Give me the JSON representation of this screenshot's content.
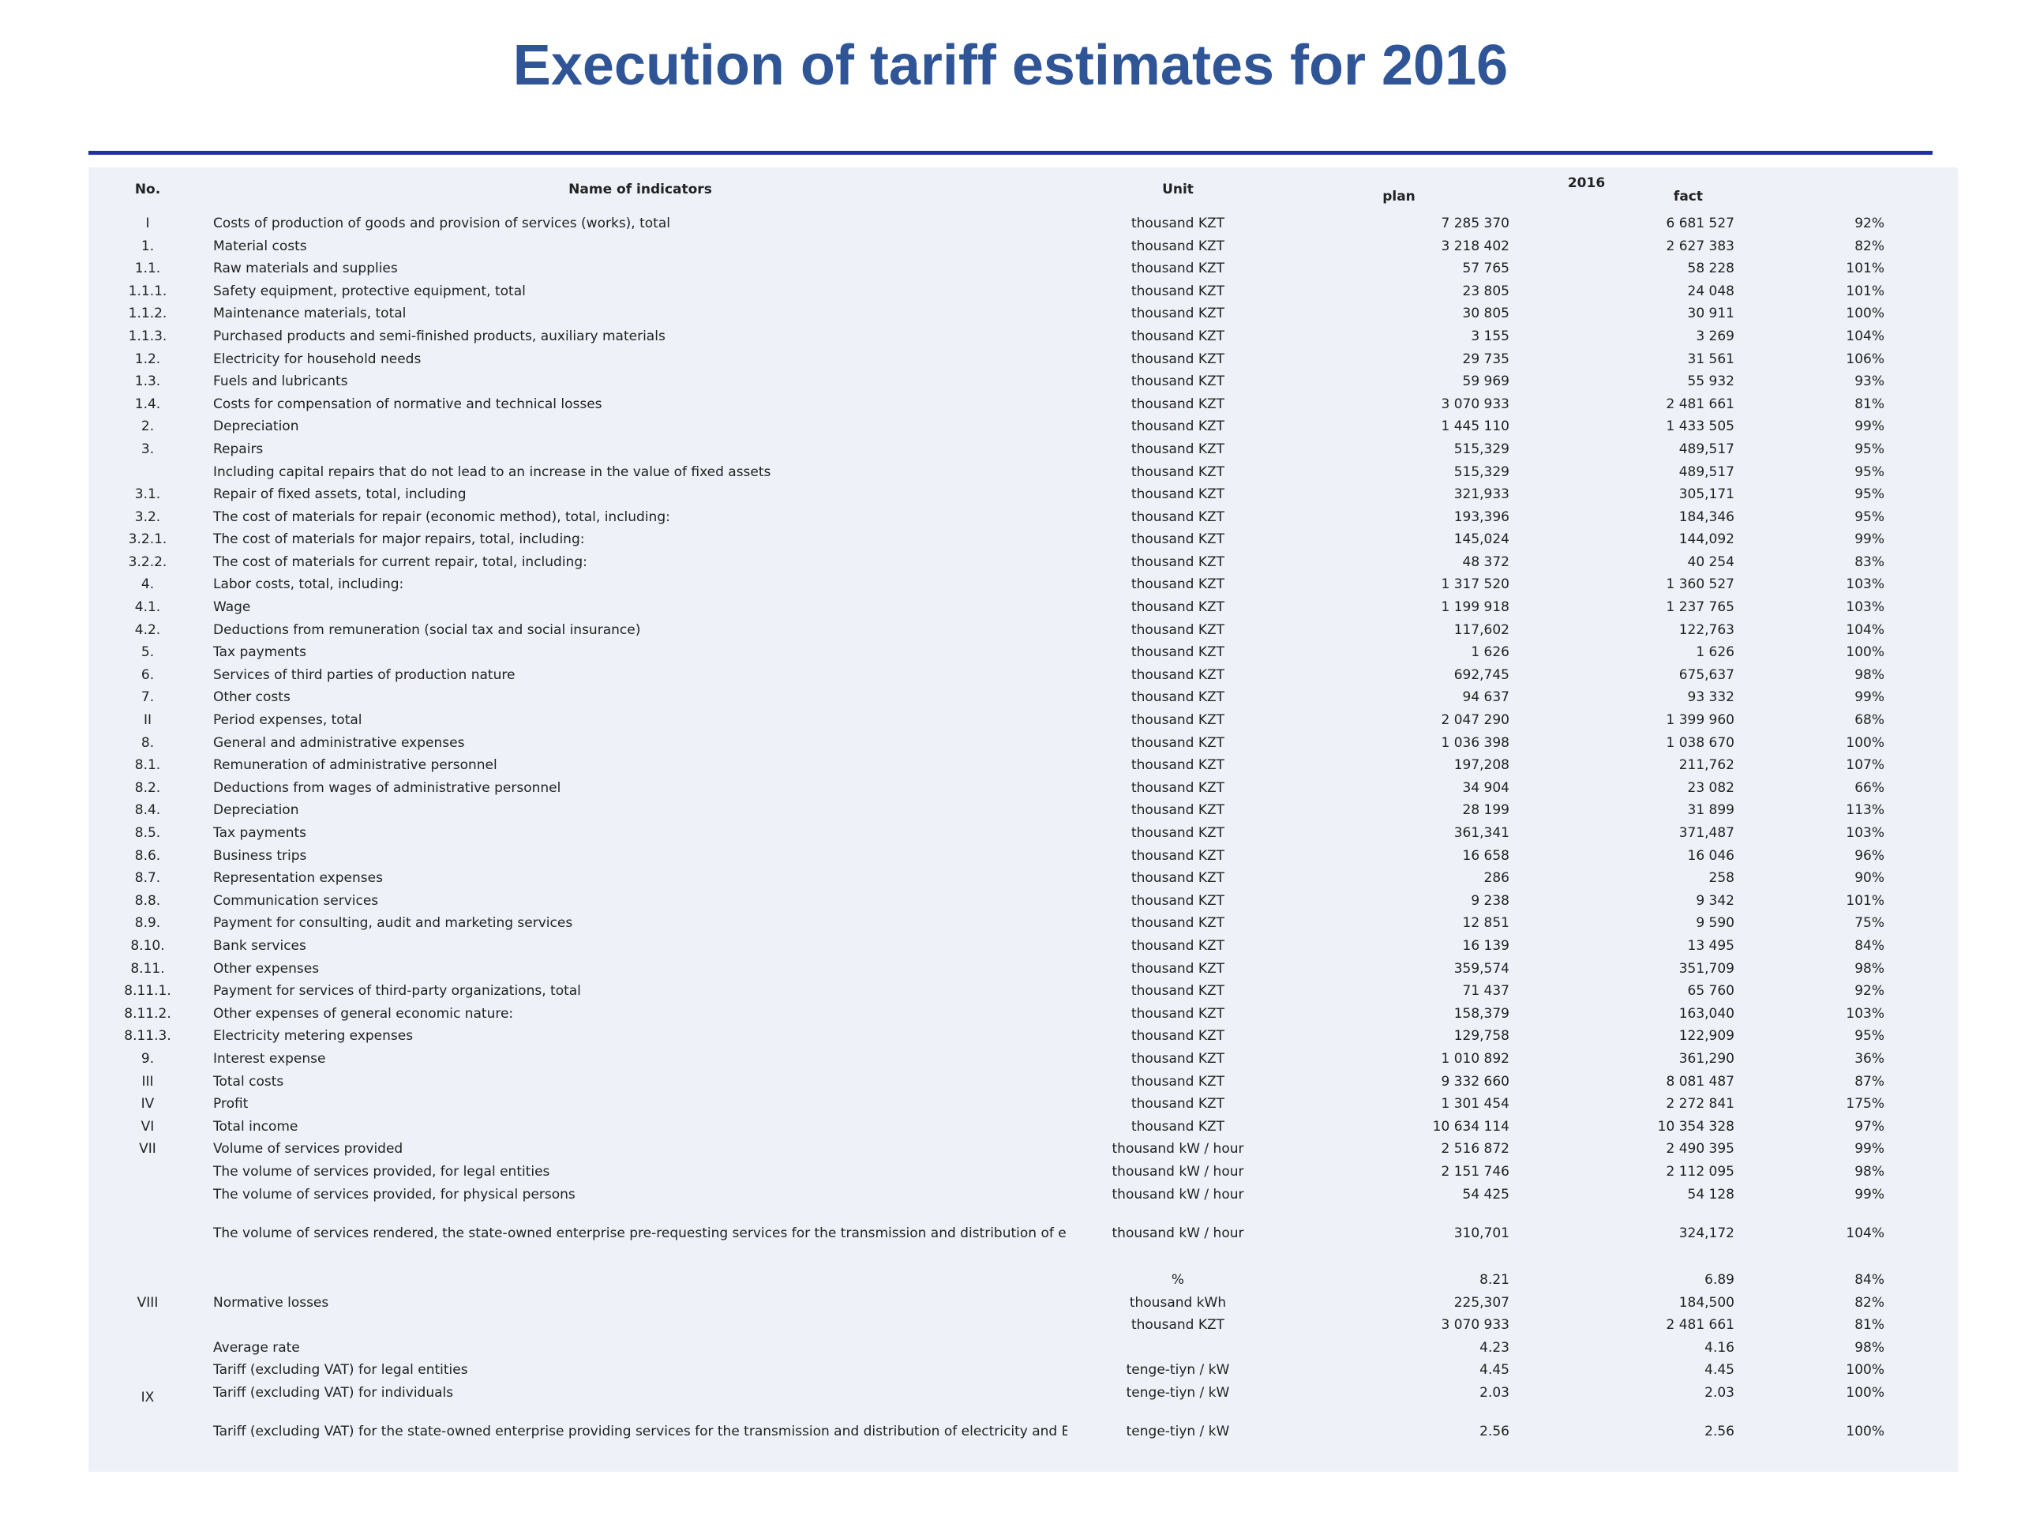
{
  "title": "Execution of tariff estimates for 2016",
  "header": {
    "no": "No.",
    "name": "Name of indicators",
    "unit": "Unit",
    "year": "2016",
    "plan": "plan",
    "fact": "fact"
  },
  "rows": [
    {
      "no": "I",
      "name": "Costs of production of goods and provision of services (works), total",
      "unit": "thousand KZT",
      "plan": "7 285 370",
      "fact": "6 681 527",
      "pct": "92%"
    },
    {
      "no": "1.",
      "name": "Material costs",
      "unit": "thousand KZT",
      "plan": "3 218 402",
      "fact": "2 627 383",
      "pct": "82%"
    },
    {
      "no": "1.1.",
      "name": "Raw materials and supplies",
      "unit": "thousand KZT",
      "plan": "57 765",
      "fact": "58 228",
      "pct": "101%"
    },
    {
      "no": "1.1.1.",
      "name": "Safety equipment, protective equipment, total",
      "unit": "thousand KZT",
      "plan": "23 805",
      "fact": "24 048",
      "pct": "101%"
    },
    {
      "no": "1.1.2.",
      "name": "Maintenance materials, total",
      "unit": "thousand KZT",
      "plan": "30 805",
      "fact": "30 911",
      "pct": "100%"
    },
    {
      "no": "1.1.3.",
      "name": "Purchased products and semi-finished products, auxiliary materials",
      "unit": "thousand KZT",
      "plan": "3 155",
      "fact": "3 269",
      "pct": "104%"
    },
    {
      "no": "1.2.",
      "name": "Electricity for household needs",
      "unit": "thousand KZT",
      "plan": "29 735",
      "fact": "31 561",
      "pct": "106%"
    },
    {
      "no": "1.3.",
      "name": "Fuels and lubricants",
      "unit": "thousand KZT",
      "plan": "59 969",
      "fact": "55 932",
      "pct": "93%"
    },
    {
      "no": "1.4.",
      "name": "Costs for compensation of normative and technical losses",
      "unit": "thousand KZT",
      "plan": "3 070 933",
      "fact": "2 481 661",
      "pct": "81%"
    },
    {
      "no": "2.",
      "name": "Depreciation",
      "unit": "thousand KZT",
      "plan": "1 445 110",
      "fact": "1 433 505",
      "pct": "99%"
    },
    {
      "no": "3.",
      "name": "Repairs",
      "unit": "thousand KZT",
      "plan": "515,329",
      "fact": "489,517",
      "pct": "95%"
    },
    {
      "no": "",
      "name": "Including capital repairs that do not lead to an increase in the value of fixed assets",
      "unit": "thousand KZT",
      "plan": "515,329",
      "fact": "489,517",
      "pct": "95%"
    },
    {
      "no": "3.1.",
      "name": "Repair of fixed assets, total, including",
      "unit": "thousand KZT",
      "plan": "321,933",
      "fact": "305,171",
      "pct": "95%"
    },
    {
      "no": "3.2.",
      "name": "The cost of materials for repair (economic method), total, including:",
      "unit": "thousand KZT",
      "plan": "193,396",
      "fact": "184,346",
      "pct": "95%"
    },
    {
      "no": "3.2.1.",
      "name": "The cost of materials for major repairs, total, including:",
      "unit": "thousand KZT",
      "plan": "145,024",
      "fact": "144,092",
      "pct": "99%"
    },
    {
      "no": "3.2.2.",
      "name": "The cost of materials for current repair, total, including:",
      "unit": "thousand KZT",
      "plan": "48 372",
      "fact": "40 254",
      "pct": "83%"
    },
    {
      "no": "4.",
      "name": "Labor costs, total, including:",
      "unit": "thousand KZT",
      "plan": "1 317 520",
      "fact": "1 360 527",
      "pct": "103%"
    },
    {
      "no": "4.1.",
      "name": "Wage",
      "unit": "thousand KZT",
      "plan": "1 199 918",
      "fact": "1 237 765",
      "pct": "103%"
    },
    {
      "no": "4.2.",
      "name": "Deductions from remuneration (social tax and social insurance)",
      "unit": "thousand KZT",
      "plan": "117,602",
      "fact": "122,763",
      "pct": "104%"
    },
    {
      "no": "5.",
      "name": "Tax payments",
      "unit": "thousand KZT",
      "plan": "1 626",
      "fact": "1 626",
      "pct": "100%"
    },
    {
      "no": "6.",
      "name": "Services of third parties of production nature",
      "unit": "thousand KZT",
      "plan": "692,745",
      "fact": "675,637",
      "pct": "98%"
    },
    {
      "no": "7.",
      "name": "Other costs",
      "unit": "thousand KZT",
      "plan": "94 637",
      "fact": "93 332",
      "pct": "99%"
    },
    {
      "no": "II",
      "name": "Period expenses, total",
      "unit": "thousand KZT",
      "plan": "2 047 290",
      "fact": "1 399 960",
      "pct": "68%"
    },
    {
      "no": "8.",
      "name": "General and administrative expenses",
      "unit": "thousand KZT",
      "plan": "1 036 398",
      "fact": "1 038 670",
      "pct": "100%"
    },
    {
      "no": "8.1.",
      "name": "Remuneration of administrative personnel",
      "unit": "thousand KZT",
      "plan": "197,208",
      "fact": "211,762",
      "pct": "107%"
    },
    {
      "no": "8.2.",
      "name": "Deductions from wages of administrative personnel",
      "unit": "thousand KZT",
      "plan": "34 904",
      "fact": "23 082",
      "pct": "66%"
    },
    {
      "no": "8.4.",
      "name": "Depreciation",
      "unit": "thousand KZT",
      "plan": "28 199",
      "fact": "31 899",
      "pct": "113%"
    },
    {
      "no": "8.5.",
      "name": "Tax payments",
      "unit": "thousand KZT",
      "plan": "361,341",
      "fact": "371,487",
      "pct": "103%"
    },
    {
      "no": "8.6.",
      "name": "Business trips",
      "unit": "thousand KZT",
      "plan": "16 658",
      "fact": "16 046",
      "pct": "96%"
    },
    {
      "no": "8.7.",
      "name": "Representation expenses",
      "unit": "thousand KZT",
      "plan": "286",
      "fact": "258",
      "pct": "90%"
    },
    {
      "no": "8.8.",
      "name": "Communication services",
      "unit": "thousand KZT",
      "plan": "9 238",
      "fact": "9 342",
      "pct": "101%"
    },
    {
      "no": "8.9.",
      "name": "Payment for consulting, audit and marketing services",
      "unit": "thousand KZT",
      "plan": "12 851",
      "fact": "9 590",
      "pct": "75%"
    },
    {
      "no": "8.10.",
      "name": "Bank services",
      "unit": "thousand KZT",
      "plan": "16 139",
      "fact": "13 495",
      "pct": "84%"
    },
    {
      "no": "8.11.",
      "name": "Other expenses",
      "unit": "thousand KZT",
      "plan": "359,574",
      "fact": "351,709",
      "pct": "98%"
    },
    {
      "no": "8.11.1.",
      "name": "Payment for services of third-party organizations, total",
      "unit": "thousand KZT",
      "plan": "71 437",
      "fact": "65 760",
      "pct": "92%"
    },
    {
      "no": "8.11.2.",
      "name": "Other expenses of general economic nature:",
      "unit": "thousand KZT",
      "plan": "158,379",
      "fact": "163,040",
      "pct": "103%"
    },
    {
      "no": "8.11.3.",
      "name": "Electricity metering expenses",
      "unit": "thousand KZT",
      "plan": "129,758",
      "fact": "122,909",
      "pct": "95%"
    },
    {
      "no": "9.",
      "name": "Interest expense",
      "unit": "thousand KZT",
      "plan": "1 010 892",
      "fact": "361,290",
      "pct": "36%"
    },
    {
      "no": "III",
      "name": "Total costs",
      "unit": "thousand KZT",
      "plan": "9 332 660",
      "fact": "8 081 487",
      "pct": "87%"
    },
    {
      "no": "IV",
      "name": "Profit",
      "unit": "thousand KZT",
      "plan": "1 301 454",
      "fact": "2 272 841",
      "pct": "175%"
    },
    {
      "no": "VI",
      "name": "Total income",
      "unit": "thousand KZT",
      "plan": "10 634 114",
      "fact": "10 354 328",
      "pct": "97%"
    },
    {
      "no": "VII",
      "name": "Volume of services provided",
      "unit": "thousand kW / hour",
      "plan": "2 516 872",
      "fact": "2 490 395",
      "pct": "99%"
    },
    {
      "no": "",
      "name": "The volume of services provided, for legal entities",
      "unit": "thousand kW / hour",
      "plan": "2 151 746",
      "fact": "2 112 095",
      "pct": "98%"
    },
    {
      "no": "",
      "name": "The volume of services provided, for physical persons",
      "unit": "thousand kW / hour",
      "plan": "54 425",
      "fact": "54 128",
      "pct": "99%"
    }
  ],
  "tall_row": {
    "no": "",
    "name": "The volume of services rendered, the state-owned enterprise pre-requesting services for the transmission and distribution of electricity and Elektrzhuyieleri LLP carrying out activities for the supply of individuals (population)",
    "unit": "thousand kW / hour",
    "plan": "310,701",
    "fact": "324,172",
    "pct": "104%"
  },
  "losses": {
    "no": "VIII",
    "name": "Normative losses",
    "rows": [
      {
        "unit": "%",
        "plan": "8.21",
        "fact": "6.89",
        "pct": "84%"
      },
      {
        "unit": "thousand kWh",
        "plan": "225,307",
        "fact": "184,500",
        "pct": "82%"
      },
      {
        "unit": "thousand KZT",
        "plan": "3 070 933",
        "fact": "2 481 661",
        "pct": "81%"
      }
    ]
  },
  "tariffs": {
    "no": "IX",
    "rows": [
      {
        "name": "Average rate",
        "unit": "",
        "plan": "4.23",
        "fact": "4.16",
        "pct": "98%"
      },
      {
        "name": "Tariff (excluding VAT) for legal entities",
        "unit": "tenge-tiyn / kW",
        "plan": "4.45",
        "fact": "4.45",
        "pct": "100%"
      },
      {
        "name": "Tariff (excluding VAT) for individuals",
        "unit": "tenge-tiyn / kW",
        "plan": "2.03",
        "fact": "2.03",
        "pct": "100%"
      },
      {
        "name": "Tariff (excluding VAT) for the state-owned enterprise providing services for the transmission and distribution of electricity and Elektrzhuyieleri LLP carrying out activities for the supply of individuals (population)",
        "unit": "tenge-tiyn / kW",
        "plan": "2.56",
        "fact": "2.56",
        "pct": "100%"
      }
    ]
  }
}
